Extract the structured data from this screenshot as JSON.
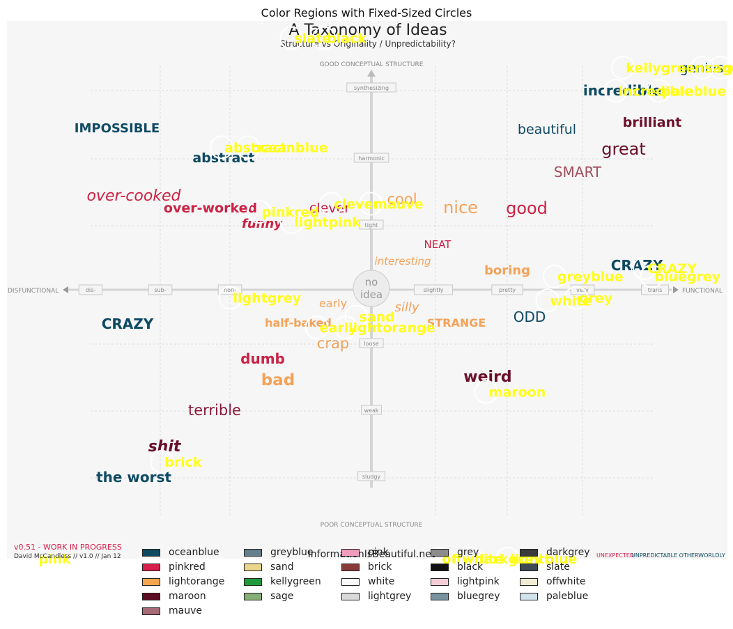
{
  "chart_data": {
    "type": "scatter",
    "title": "Color Regions with Fixed-Sized Circles",
    "image_text": {
      "heading": "A Taxonomy of Ideas",
      "subheading": "Structure vs Originality / Unpredictability?",
      "axis_top": "GOOD CONCEPTUAL STRUCTURE",
      "axis_bottom": "POOR CONCEPTUAL STRUCTURE",
      "axis_left": "DISFUNCTIONAL",
      "axis_right": "FUNCTIONAL",
      "center": [
        "no",
        "idea"
      ],
      "footer_left": "v0.51 - WORK IN PROGRESS",
      "footer_credit": "David McCandless // v1.0 // Jan 12",
      "footer_center": "InformationIsBeautiful.net",
      "footer_right": "UNPREDICTABLE OTHERWORLDLY",
      "footer_right_red": "UNEXPECTED",
      "vertical_ticks": [
        "synthesizing",
        "harmonic",
        "tight",
        "loose",
        "weak",
        "sludgy"
      ],
      "horizontal_ticks": [
        "dis-",
        "sub-",
        "non-",
        "slightly",
        "pretty",
        "very",
        "trans"
      ]
    },
    "words": [
      {
        "text": "IMPOSSIBLE",
        "color": "#0e4a62"
      },
      {
        "text": "abstract",
        "color": "#0e4a62"
      },
      {
        "text": "over-cooked",
        "color": "#cc2244"
      },
      {
        "text": "over-worked",
        "color": "#cc2244"
      },
      {
        "text": "funny",
        "color": "#cc2244"
      },
      {
        "text": "clever",
        "color": "#c2204a"
      },
      {
        "text": "cool",
        "color": "#f4a259"
      },
      {
        "text": "nice",
        "color": "#f4a259"
      },
      {
        "text": "good",
        "color": "#cc2244"
      },
      {
        "text": "beautiful",
        "color": "#0e4a62"
      },
      {
        "text": "brilliant",
        "color": "#6a0f2a"
      },
      {
        "text": "great",
        "color": "#6a0f2a"
      },
      {
        "text": "SMART",
        "color": "#a05060"
      },
      {
        "text": "incredible",
        "color": "#0e4a62"
      },
      {
        "text": "genius",
        "color": "#0e4a62"
      },
      {
        "text": "NEAT",
        "color": "#cc2244"
      },
      {
        "text": "interesting",
        "color": "#f4a259"
      },
      {
        "text": "boring",
        "color": "#f4a259"
      },
      {
        "text": "CRAZY",
        "color": "#0e4a62"
      },
      {
        "text": "CRAZY",
        "color": "#0e4a62"
      },
      {
        "text": "ODD",
        "color": "#0e4a62"
      },
      {
        "text": "early",
        "color": "#f4a259"
      },
      {
        "text": "silly",
        "color": "#f4a259"
      },
      {
        "text": "half-baked",
        "color": "#f4a259"
      },
      {
        "text": "STRANGE",
        "color": "#f4a259"
      },
      {
        "text": "crap",
        "color": "#f4a259"
      },
      {
        "text": "dumb",
        "color": "#cc2244"
      },
      {
        "text": "bad",
        "color": "#f4a259"
      },
      {
        "text": "weird",
        "color": "#6a0f2a"
      },
      {
        "text": "terrible",
        "color": "#8b1a3a"
      },
      {
        "text": "shit",
        "color": "#6a0f2a"
      },
      {
        "text": "the worst",
        "color": "#0e4a62"
      }
    ],
    "points": [
      {
        "label": "slate",
        "x": 0.395,
        "y": 0.032
      },
      {
        "label": "black",
        "x": 0.44,
        "y": 0.032
      },
      {
        "label": "kellygreen",
        "x": 0.855,
        "y": 0.087
      },
      {
        "label": "sage",
        "x": 0.965,
        "y": 0.087
      },
      {
        "label": "genius",
        "x": 0.99,
        "y": 0.087
      },
      {
        "label": "incredible",
        "x": 0.845,
        "y": 0.13
      },
      {
        "label": "paleblue",
        "x": 0.905,
        "y": 0.13
      },
      {
        "label": "abstract",
        "x": 0.298,
        "y": 0.235
      },
      {
        "label": "oceanblue",
        "x": 0.335,
        "y": 0.235
      },
      {
        "label": "pinkred",
        "x": 0.35,
        "y": 0.355
      },
      {
        "label": "lightpink",
        "x": 0.395,
        "y": 0.374
      },
      {
        "label": "clever",
        "x": 0.45,
        "y": 0.34
      },
      {
        "label": "mauve",
        "x": 0.505,
        "y": 0.34
      },
      {
        "label": "CRAZY",
        "x": 0.885,
        "y": 0.46
      },
      {
        "label": "greyblue",
        "x": 0.76,
        "y": 0.475
      },
      {
        "label": "bluegrey",
        "x": 0.895,
        "y": 0.475
      },
      {
        "label": "lightgrey",
        "x": 0.31,
        "y": 0.515
      },
      {
        "label": "white",
        "x": 0.75,
        "y": 0.52
      },
      {
        "label": "grey",
        "x": 0.79,
        "y": 0.515
      },
      {
        "label": "sand",
        "x": 0.485,
        "y": 0.55
      },
      {
        "label": "early",
        "x": 0.43,
        "y": 0.57
      },
      {
        "label": "lightorange",
        "x": 0.47,
        "y": 0.57
      },
      {
        "label": "maroon",
        "x": 0.665,
        "y": 0.69
      },
      {
        "label": "brick",
        "x": 0.215,
        "y": 0.82
      },
      {
        "label": "pink",
        "x": 0.04,
        "y": 1.0
      },
      {
        "label": "offwhite",
        "x": 0.6,
        "y": 1.0
      },
      {
        "label": "darkgrey",
        "x": 0.645,
        "y": 1.0
      },
      {
        "label": "lightblue",
        "x": 0.695,
        "y": 1.0
      }
    ],
    "legend": {
      "columns": [
        [
          {
            "name": "oceanblue",
            "color": "#0e4a62"
          },
          {
            "name": "pinkred",
            "color": "#d81e4a"
          },
          {
            "name": "lightorange",
            "color": "#f4a64e"
          },
          {
            "name": "maroon",
            "color": "#5e0b24"
          },
          {
            "name": "mauve",
            "color": "#a86a76"
          }
        ],
        [
          {
            "name": "greyblue",
            "color": "#667f8c"
          },
          {
            "name": "sand",
            "color": "#e9d68a"
          },
          {
            "name": "kellygreen",
            "color": "#1e9a3c"
          },
          {
            "name": "sage",
            "color": "#87ae76"
          }
        ],
        [
          {
            "name": "pink",
            "color": "#f29cbe"
          },
          {
            "name": "brick",
            "color": "#8b3a3a"
          },
          {
            "name": "white",
            "color": "#f8f8f8"
          },
          {
            "name": "lightgrey",
            "color": "#d9d9d9"
          }
        ],
        [
          {
            "name": "grey",
            "color": "#8c8c8c"
          },
          {
            "name": "black",
            "color": "#111111"
          },
          {
            "name": "lightpink",
            "color": "#f3ccd8"
          },
          {
            "name": "bluegrey",
            "color": "#7892a0"
          }
        ],
        [
          {
            "name": "darkgrey",
            "color": "#3a3a3a"
          },
          {
            "name": "slate",
            "color": "#3e4b52"
          },
          {
            "name": "offwhite",
            "color": "#f1ecd4"
          },
          {
            "name": "paleblue",
            "color": "#d3e3ec"
          }
        ]
      ]
    }
  }
}
